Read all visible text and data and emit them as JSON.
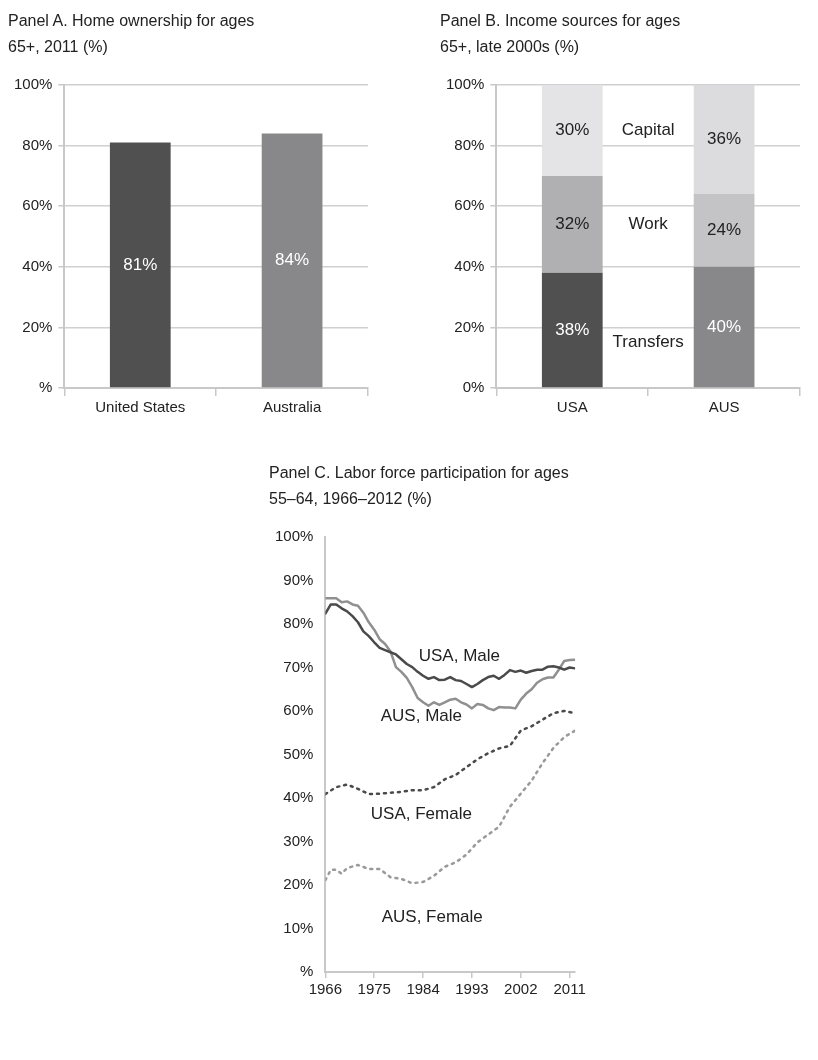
{
  "chart_data": [
    {
      "type": "bar",
      "title": "Panel A. Home ownership for ages 65+, 2011 (%)",
      "categories": [
        "United States",
        "Australia"
      ],
      "values": [
        81,
        84
      ],
      "colors": [
        "#505050",
        "#88888a"
      ],
      "value_labels": [
        "81%",
        "84%"
      ],
      "ylim": [
        0,
        100
      ],
      "yticks": [
        {
          "value": 0,
          "label": "%"
        },
        {
          "value": 20,
          "label": "20%"
        },
        {
          "value": 40,
          "label": "40%"
        },
        {
          "value": 60,
          "label": "60%"
        },
        {
          "value": 80,
          "label": "80%"
        },
        {
          "value": 100,
          "label": "100%"
        }
      ],
      "grid": "y",
      "legend": false
    },
    {
      "type": "bar",
      "title": "Panel B. Income sources for ages 65+, late 2000s (%)",
      "categories": [
        "USA",
        "AUS"
      ],
      "stacked": true,
      "series": [
        {
          "name": "Transfers",
          "colors": [
            "#505050",
            "#88888a"
          ],
          "values": [
            38,
            40
          ],
          "value_labels": [
            "38%",
            "40%"
          ]
        },
        {
          "name": "Work",
          "colors": [
            "#b0b0b2",
            "#c4c4c6"
          ],
          "values": [
            32,
            24
          ],
          "value_labels": [
            "32%",
            "24%"
          ]
        },
        {
          "name": "Capital",
          "colors": [
            "#e4e4e6",
            "#dcdcde"
          ],
          "values": [
            30,
            36
          ],
          "value_labels": [
            "30%",
            "36%"
          ]
        }
      ],
      "ylim": [
        0,
        100
      ],
      "yticks": [
        {
          "value": 0,
          "label": "0%"
        },
        {
          "value": 20,
          "label": "20%"
        },
        {
          "value": 40,
          "label": "40%"
        },
        {
          "value": 60,
          "label": "60%"
        },
        {
          "value": 80,
          "label": "80%"
        },
        {
          "value": 100,
          "label": "100%"
        }
      ],
      "grid": "y",
      "legend": false
    },
    {
      "type": "line",
      "title": "Panel C. Labor force participation for ages 55–64, 1966–2012 (%)",
      "xlim": [
        1966,
        2012
      ],
      "xticks": [
        1966,
        1975,
        1984,
        1993,
        2002,
        2011
      ],
      "ylim": [
        0,
        100
      ],
      "yticks": [
        {
          "value": 0,
          "label": "%"
        },
        {
          "value": 10,
          "label": "10%"
        },
        {
          "value": 20,
          "label": "20%"
        },
        {
          "value": 30,
          "label": "30%"
        },
        {
          "value": 40,
          "label": "40%"
        },
        {
          "value": 50,
          "label": "50%"
        },
        {
          "value": 60,
          "label": "60%"
        },
        {
          "value": 70,
          "label": "70%"
        },
        {
          "value": 80,
          "label": "80%"
        },
        {
          "value": 90,
          "label": "90%"
        },
        {
          "value": 100,
          "label": "100%"
        }
      ],
      "grid": false,
      "legend": false,
      "marker": "none",
      "series": [
        {
          "name": "USA, Male",
          "color": "#4a4a4a",
          "line_style": "solid",
          "x": [
            1966,
            1967,
            1968,
            1969,
            1970,
            1971,
            1972,
            1973,
            1974,
            1975,
            1976,
            1977,
            1978,
            1979,
            1980,
            1981,
            1982,
            1983,
            1984,
            1985,
            1986,
            1987,
            1988,
            1989,
            1990,
            1991,
            1992,
            1993,
            1994,
            1995,
            1996,
            1997,
            1998,
            1999,
            2000,
            2001,
            2002,
            2003,
            2004,
            2005,
            2006,
            2007,
            2008,
            2009,
            2010,
            2011,
            2012
          ],
          "values": [
            82.4,
            84.5,
            84.5,
            83.6,
            82.9,
            81.8,
            80.4,
            78.3,
            77.2,
            75.8,
            74.5,
            74,
            73.5,
            73,
            71.9,
            70.8,
            70.1,
            69,
            68.1,
            67.4,
            67.8,
            67.1,
            67.2,
            67.8,
            67.1,
            66.9,
            66.2,
            65.5,
            66.2,
            67.1,
            67.8,
            68.1,
            67.4,
            68.3,
            69.4,
            69,
            69.3,
            68.8,
            69.2,
            69.5,
            69.5,
            70.2,
            70.3,
            70,
            69.5,
            70,
            69.8
          ]
        },
        {
          "name": "AUS, Male",
          "color": "#909092",
          "line_style": "solid",
          "x": [
            1966,
            1967,
            1968,
            1969,
            1970,
            1971,
            1972,
            1973,
            1974,
            1975,
            1976,
            1977,
            1978,
            1979,
            1980,
            1981,
            1982,
            1983,
            1984,
            1985,
            1986,
            1987,
            1988,
            1989,
            1990,
            1991,
            1992,
            1993,
            1994,
            1995,
            1996,
            1997,
            1998,
            1999,
            2000,
            2001,
            2002,
            2003,
            2004,
            2005,
            2006,
            2007,
            2008,
            2009,
            2010,
            2011,
            2012
          ],
          "values": [
            85.9,
            85.9,
            85.9,
            85,
            85.2,
            84.5,
            84.2,
            82.6,
            80.4,
            78.7,
            76.5,
            75.4,
            73.7,
            70.1,
            69,
            67.6,
            65.5,
            63,
            62,
            61.2,
            62,
            61.4,
            62,
            62.6,
            62.8,
            62,
            61.5,
            60.6,
            61.6,
            61.4,
            60.6,
            60.2,
            60.9,
            60.8,
            60.8,
            60.6,
            62.6,
            64,
            65,
            66.5,
            67.3,
            67.7,
            67.7,
            69.5,
            71.5,
            71.7,
            71.8
          ]
        },
        {
          "name": "USA, Female",
          "color": "#4a4a4a",
          "line_style": "dotted",
          "x": [
            1966,
            1968,
            1970,
            1972,
            1974,
            1976,
            1978,
            1980,
            1982,
            1984,
            1986,
            1988,
            1990,
            1992,
            1994,
            1996,
            1998,
            2000,
            2002,
            2004,
            2006,
            2008,
            2010,
            2012
          ],
          "values": [
            40.9,
            42.5,
            43.1,
            42.1,
            40.9,
            41,
            41.2,
            41.4,
            41.8,
            41.8,
            42.5,
            44.3,
            45.3,
            47.1,
            48.9,
            50.3,
            51.4,
            52,
            55.5,
            56.5,
            58,
            59.5,
            60,
            59.5
          ]
        },
        {
          "name": "AUS, Female",
          "color": "#9a9a9c",
          "line_style": "dotted",
          "x": [
            1966,
            1967,
            1968,
            1969,
            1970,
            1972,
            1974,
            1976,
            1978,
            1980,
            1982,
            1984,
            1986,
            1988,
            1990,
            1992,
            1994,
            1996,
            1998,
            2000,
            2002,
            2004,
            2006,
            2008,
            2010,
            2012
          ],
          "values": [
            21.1,
            23.5,
            23.5,
            22.6,
            23.9,
            24.6,
            23.7,
            23.7,
            21.8,
            21.4,
            20.4,
            20.7,
            22.1,
            24.2,
            25.2,
            27,
            29.8,
            31.6,
            33.4,
            38,
            41,
            44,
            48,
            51.5,
            54,
            55.5
          ]
        }
      ]
    }
  ]
}
